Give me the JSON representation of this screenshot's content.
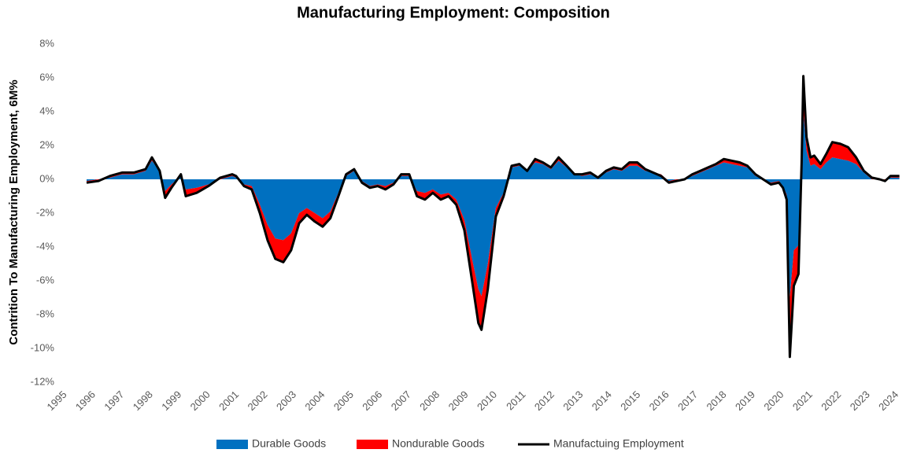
{
  "chart_data": {
    "type": "stacked-area-line",
    "title": "Manufacturing Employment: Composition",
    "y_label": "Contrition To Manufacturing Employment, 6M%",
    "x": [
      1995.74,
      1996.15,
      1996.56,
      1996.98,
      1997.39,
      1997.8,
      1998.02,
      1998.29,
      1998.48,
      1998.7,
      1999.03,
      1999.2,
      1999.58,
      1999.99,
      2000.4,
      2000.82,
      2000.95,
      2001.23,
      2001.5,
      2001.78,
      2002.05,
      2002.32,
      2002.6,
      2002.87,
      2003.15,
      2003.42,
      2003.7,
      2003.97,
      2004.24,
      2004.52,
      2004.79,
      2005.07,
      2005.34,
      2005.62,
      2005.89,
      2006.16,
      2006.44,
      2006.71,
      2006.99,
      2007.26,
      2007.54,
      2007.81,
      2008.09,
      2008.36,
      2008.63,
      2008.91,
      2009.18,
      2009.4,
      2009.51,
      2009.73,
      2010.01,
      2010.28,
      2010.56,
      2010.83,
      2011.1,
      2011.38,
      2011.65,
      2011.93,
      2012.2,
      2012.48,
      2012.75,
      2013.02,
      2013.3,
      2013.57,
      2013.85,
      2014.12,
      2014.4,
      2014.67,
      2014.94,
      2015.22,
      2015.49,
      2015.77,
      2016.04,
      2016.31,
      2016.59,
      2016.86,
      2017.14,
      2017.41,
      2017.68,
      2017.96,
      2018.23,
      2018.51,
      2018.78,
      2019.06,
      2019.33,
      2019.6,
      2019.88,
      2020.02,
      2020.15,
      2020.26,
      2020.4,
      2020.56,
      2020.67,
      2020.73,
      2020.84,
      2020.98,
      2021.11,
      2021.33,
      2021.53,
      2021.74,
      2022.02,
      2022.29,
      2022.57,
      2022.84,
      2023.12,
      2023.39,
      2023.58,
      2023.77,
      2024.08
    ],
    "series": [
      {
        "name": "Durable Goods",
        "color": "#0070c0",
        "kind": "area",
        "values": [
          -0.1,
          0.0,
          0.1,
          0.3,
          0.3,
          0.5,
          1.1,
          0.5,
          -0.7,
          -0.3,
          0.2,
          -0.6,
          -0.5,
          -0.3,
          0.0,
          0.2,
          0.1,
          -0.3,
          -0.4,
          -1.5,
          -2.7,
          -3.5,
          -3.6,
          -3.2,
          -2.0,
          -1.7,
          -2.0,
          -2.3,
          -1.9,
          -0.8,
          0.2,
          0.5,
          -0.1,
          -0.4,
          -0.3,
          -0.4,
          -0.2,
          0.2,
          0.2,
          -0.7,
          -0.8,
          -0.6,
          -0.9,
          -0.8,
          -1.2,
          -2.4,
          -4.7,
          -6.5,
          -6.9,
          -5.0,
          -1.7,
          -0.8,
          0.7,
          0.8,
          0.5,
          1.0,
          0.9,
          0.6,
          1.1,
          0.7,
          0.3,
          0.2,
          0.3,
          0.1,
          0.4,
          0.6,
          0.5,
          0.8,
          0.8,
          0.5,
          0.4,
          0.3,
          -0.1,
          0.0,
          0.0,
          0.2,
          0.4,
          0.6,
          0.8,
          1.0,
          0.9,
          0.8,
          0.7,
          0.2,
          0.0,
          -0.2,
          -0.1,
          -0.4,
          -0.9,
          -7.0,
          -4.2,
          -3.9,
          0.6,
          4.0,
          1.7,
          0.8,
          0.9,
          0.6,
          1.0,
          1.3,
          1.2,
          1.1,
          0.9,
          0.4,
          0.0,
          0.0,
          0.0,
          0.1,
          0.1
        ]
      },
      {
        "name": "Nondurable Goods",
        "color": "#ff0000",
        "kind": "area",
        "values": [
          -0.1,
          -0.1,
          0.1,
          0.1,
          0.1,
          0.1,
          0.2,
          0.0,
          -0.4,
          -0.2,
          0.1,
          -0.4,
          -0.3,
          -0.1,
          0.1,
          0.1,
          0.1,
          -0.1,
          -0.2,
          -0.5,
          -0.9,
          -1.2,
          -1.3,
          -1.0,
          -0.6,
          -0.4,
          -0.5,
          -0.5,
          -0.4,
          -0.2,
          0.1,
          0.1,
          -0.1,
          -0.1,
          -0.1,
          -0.2,
          -0.1,
          0.1,
          0.1,
          -0.3,
          -0.4,
          -0.2,
          -0.3,
          -0.2,
          -0.3,
          -0.6,
          -1.3,
          -2.0,
          -2.0,
          -1.5,
          -0.5,
          -0.2,
          0.1,
          0.1,
          0.0,
          0.2,
          0.1,
          0.1,
          0.2,
          0.1,
          0.0,
          0.1,
          0.1,
          0.0,
          0.1,
          0.1,
          0.1,
          0.2,
          0.2,
          0.1,
          0.0,
          -0.1,
          -0.1,
          -0.1,
          0.0,
          0.1,
          0.1,
          0.1,
          0.1,
          0.2,
          0.2,
          0.2,
          0.1,
          0.1,
          0.0,
          -0.1,
          -0.1,
          -0.1,
          -0.3,
          -3.5,
          -2.1,
          -1.7,
          0.4,
          2.1,
          0.8,
          0.5,
          0.5,
          0.3,
          0.5,
          0.9,
          0.9,
          0.8,
          0.4,
          0.1,
          0.1,
          0.0,
          -0.1,
          0.1,
          0.1
        ]
      },
      {
        "name": "Manufactuing Employment",
        "color": "#000000",
        "kind": "line",
        "values": [
          -0.2,
          -0.1,
          0.2,
          0.4,
          0.4,
          0.6,
          1.3,
          0.5,
          -1.1,
          -0.5,
          0.3,
          -1.0,
          -0.8,
          -0.4,
          0.1,
          0.3,
          0.2,
          -0.4,
          -0.6,
          -2.0,
          -3.6,
          -4.7,
          -4.9,
          -4.2,
          -2.6,
          -2.1,
          -2.5,
          -2.8,
          -2.3,
          -1.0,
          0.3,
          0.6,
          -0.2,
          -0.5,
          -0.4,
          -0.6,
          -0.3,
          0.3,
          0.3,
          -1.0,
          -1.2,
          -0.8,
          -1.2,
          -1.0,
          -1.5,
          -3.0,
          -6.0,
          -8.5,
          -8.9,
          -6.5,
          -2.2,
          -1.0,
          0.8,
          0.9,
          0.5,
          1.2,
          1.0,
          0.7,
          1.3,
          0.8,
          0.3,
          0.3,
          0.4,
          0.1,
          0.5,
          0.7,
          0.6,
          1.0,
          1.0,
          0.6,
          0.4,
          0.2,
          -0.2,
          -0.1,
          0.0,
          0.3,
          0.5,
          0.7,
          0.9,
          1.2,
          1.1,
          1.0,
          0.8,
          0.3,
          0.0,
          -0.3,
          -0.2,
          -0.5,
          -1.2,
          -10.5,
          -6.3,
          -5.6,
          1.0,
          6.1,
          2.5,
          1.3,
          1.4,
          0.9,
          1.5,
          2.2,
          2.1,
          1.9,
          1.3,
          0.5,
          0.1,
          0.0,
          -0.1,
          0.2,
          0.2
        ]
      }
    ],
    "xlim": [
      1995,
      2024.2
    ],
    "xticks": [
      1995,
      1996,
      1997,
      1998,
      1999,
      2000,
      2001,
      2002,
      2003,
      2004,
      2005,
      2006,
      2007,
      2008,
      2009,
      2010,
      2011,
      2012,
      2013,
      2014,
      2015,
      2016,
      2017,
      2018,
      2019,
      2020,
      2021,
      2022,
      2023,
      2024
    ],
    "ylim": [
      -12,
      8
    ],
    "yticks": [
      {
        "value": -12,
        "label": "-12%"
      },
      {
        "value": -10,
        "label": "-10%"
      },
      {
        "value": -8,
        "label": "-8%"
      },
      {
        "value": -6,
        "label": "-6%"
      },
      {
        "value": -4,
        "label": "-4%"
      },
      {
        "value": -2,
        "label": "-2%"
      },
      {
        "value": 0,
        "label": "0%"
      },
      {
        "value": 2,
        "label": "2%"
      },
      {
        "value": 4,
        "label": "4%"
      },
      {
        "value": 6,
        "label": "6%"
      },
      {
        "value": 8,
        "label": "8%"
      }
    ],
    "grid": false,
    "legend": "bottom"
  }
}
